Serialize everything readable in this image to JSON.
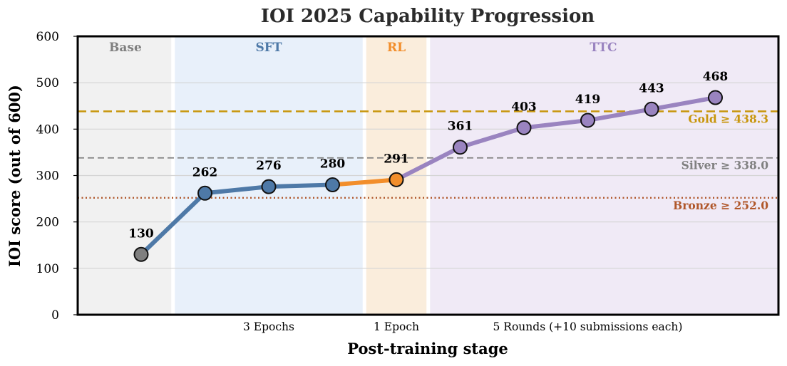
{
  "chart_data": {
    "type": "line",
    "title": "IOI 2025 Capability Progression",
    "xlabel": "Post-training stage",
    "ylabel": "IOI score (out of 600)",
    "ylim": [
      0,
      600
    ],
    "yticks": [
      0,
      100,
      200,
      300,
      400,
      500,
      600
    ],
    "grid": "horizontal",
    "stages": [
      {
        "label": "Base",
        "color": "#7f7f7f",
        "bg": "#f1f1f1"
      },
      {
        "label": "SFT",
        "color": "#4e79a7",
        "bg": "#e8f0fa"
      },
      {
        "label": "RL",
        "color": "#f28e2b",
        "bg": "#faeddc"
      },
      {
        "label": "TTC",
        "color": "#9a84c0",
        "bg": "#f0eaf6"
      }
    ],
    "stage_sublabels": [
      {
        "stage": "SFT",
        "text": "3 Epochs"
      },
      {
        "stage": "RL",
        "text": "1 Epoch"
      },
      {
        "stage": "TTC",
        "text": "5 Rounds (+10 submissions each)"
      }
    ],
    "points": [
      {
        "value": 130,
        "stage": "Base"
      },
      {
        "value": 262,
        "stage": "SFT"
      },
      {
        "value": 276,
        "stage": "SFT"
      },
      {
        "value": 280,
        "stage": "SFT"
      },
      {
        "value": 291,
        "stage": "RL"
      },
      {
        "value": 361,
        "stage": "TTC"
      },
      {
        "value": 403,
        "stage": "TTC"
      },
      {
        "value": 419,
        "stage": "TTC"
      },
      {
        "value": 443,
        "stage": "TTC"
      },
      {
        "value": 468,
        "stage": "TTC"
      }
    ],
    "thresholds": [
      {
        "label": "Gold ≥ 438.3",
        "value": 438.3,
        "color": "#c8960c",
        "style": "dashed"
      },
      {
        "label": "Silver ≥ 338.0",
        "value": 338.0,
        "color": "#808080",
        "style": "dashed"
      },
      {
        "label": "Bronze ≥ 252.0",
        "value": 252.0,
        "color": "#b0572a",
        "style": "dotted"
      }
    ]
  }
}
